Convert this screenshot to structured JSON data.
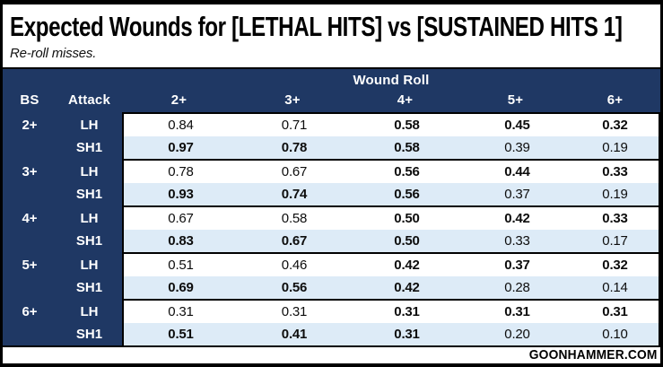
{
  "page": {
    "footer_brand": "GOONHAMMER.COM"
  },
  "colors": {
    "header_navy": "#1F3864",
    "row_alt_blue": "#DDEBF7",
    "row_white": "#FFFFFF",
    "border_black": "#000000"
  },
  "chart_data": {
    "type": "table",
    "title": "Expected Wounds for [LETHAL HITS] vs [SUSTAINED HITS 1]",
    "subtitle": "Re-roll misses.",
    "group_header": "Wound Roll",
    "row_headers": [
      "BS",
      "Attack"
    ],
    "columns": [
      "2+",
      "3+",
      "4+",
      "5+",
      "6+"
    ],
    "bold_means": "higher value of the LH/SH1 pair in that column (ties bold both)",
    "groups": [
      {
        "bs": "2+",
        "rows": [
          {
            "attack": "LH",
            "values": [
              "0.84",
              "0.71",
              "0.58",
              "0.45",
              "0.32"
            ],
            "bold": [
              0,
              0,
              1,
              1,
              1
            ]
          },
          {
            "attack": "SH1",
            "values": [
              "0.97",
              "0.78",
              "0.58",
              "0.39",
              "0.19"
            ],
            "bold": [
              1,
              1,
              1,
              0,
              0
            ]
          }
        ]
      },
      {
        "bs": "3+",
        "rows": [
          {
            "attack": "LH",
            "values": [
              "0.78",
              "0.67",
              "0.56",
              "0.44",
              "0.33"
            ],
            "bold": [
              0,
              0,
              1,
              1,
              1
            ]
          },
          {
            "attack": "SH1",
            "values": [
              "0.93",
              "0.74",
              "0.56",
              "0.37",
              "0.19"
            ],
            "bold": [
              1,
              1,
              1,
              0,
              0
            ]
          }
        ]
      },
      {
        "bs": "4+",
        "rows": [
          {
            "attack": "LH",
            "values": [
              "0.67",
              "0.58",
              "0.50",
              "0.42",
              "0.33"
            ],
            "bold": [
              0,
              0,
              1,
              1,
              1
            ]
          },
          {
            "attack": "SH1",
            "values": [
              "0.83",
              "0.67",
              "0.50",
              "0.33",
              "0.17"
            ],
            "bold": [
              1,
              1,
              1,
              0,
              0
            ]
          }
        ]
      },
      {
        "bs": "5+",
        "rows": [
          {
            "attack": "LH",
            "values": [
              "0.51",
              "0.46",
              "0.42",
              "0.37",
              "0.32"
            ],
            "bold": [
              0,
              0,
              1,
              1,
              1
            ]
          },
          {
            "attack": "SH1",
            "values": [
              "0.69",
              "0.56",
              "0.42",
              "0.28",
              "0.14"
            ],
            "bold": [
              1,
              1,
              1,
              0,
              0
            ]
          }
        ]
      },
      {
        "bs": "6+",
        "rows": [
          {
            "attack": "LH",
            "values": [
              "0.31",
              "0.31",
              "0.31",
              "0.31",
              "0.31"
            ],
            "bold": [
              0,
              0,
              1,
              1,
              1
            ]
          },
          {
            "attack": "SH1",
            "values": [
              "0.51",
              "0.41",
              "0.31",
              "0.20",
              "0.10"
            ],
            "bold": [
              1,
              1,
              1,
              0,
              0
            ]
          }
        ]
      }
    ]
  }
}
